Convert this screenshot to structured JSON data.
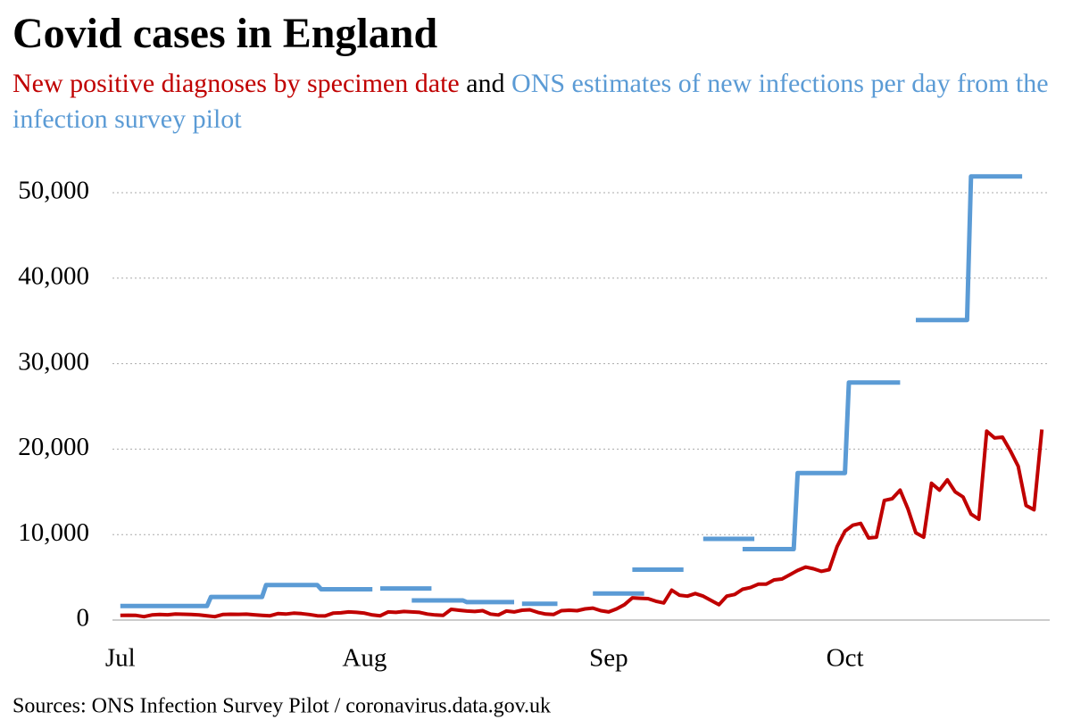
{
  "chart_data": {
    "type": "line",
    "title": "Covid cases in England",
    "subtitle_connector": "and",
    "source": "Sources: ONS Infection Survey Pilot / coronavirus.data.gov.uk",
    "xlim": [
      -1,
      118
    ],
    "xticks": [
      {
        "value": 0,
        "label": "Jul"
      },
      {
        "value": 31,
        "label": "Aug"
      },
      {
        "value": 62,
        "label": "Sep"
      },
      {
        "value": 92,
        "label": "Oct"
      }
    ],
    "ylim": [
      0,
      55000
    ],
    "yticks": [
      0,
      {
        "value": 10000,
        "label": "10,000"
      },
      {
        "value": 20000,
        "label": "20,000"
      },
      {
        "value": 30000,
        "label": "30,000"
      },
      {
        "value": 40000,
        "label": "40,000"
      },
      {
        "value": 50000,
        "label": "50,000"
      }
    ],
    "grid": true,
    "series": [
      {
        "name": "New positive diagnoses by specimen date",
        "color": "#c00000",
        "x": [
          0,
          1,
          2,
          3,
          4,
          5,
          6,
          7,
          8,
          9,
          10,
          11,
          12,
          13,
          14,
          15,
          16,
          17,
          18,
          19,
          20,
          21,
          22,
          23,
          24,
          25,
          26,
          27,
          28,
          29,
          30,
          31,
          32,
          33,
          34,
          35,
          36,
          37,
          38,
          39,
          40,
          41,
          42,
          43,
          44,
          45,
          46,
          47,
          48,
          49,
          50,
          51,
          52,
          53,
          54,
          55,
          56,
          57,
          58,
          59,
          60,
          61,
          62,
          63,
          64,
          65,
          66,
          67,
          68,
          69,
          70,
          71,
          72,
          73,
          74,
          75,
          76,
          77,
          78,
          79,
          80,
          81,
          82,
          83,
          84,
          85,
          86,
          87,
          88,
          89,
          90,
          91,
          92,
          93,
          94,
          95,
          96,
          97,
          98,
          99,
          100,
          101,
          102,
          103,
          104,
          105,
          106,
          107,
          108,
          109,
          110,
          111,
          112,
          113,
          114,
          115,
          116,
          117
        ],
        "values": [
          550,
          560,
          540,
          400,
          600,
          650,
          620,
          700,
          680,
          650,
          600,
          500,
          400,
          650,
          680,
          670,
          690,
          620,
          550,
          500,
          750,
          700,
          800,
          750,
          650,
          500,
          480,
          800,
          850,
          950,
          900,
          800,
          600,
          500,
          950,
          900,
          1000,
          950,
          900,
          700,
          600,
          550,
          1250,
          1150,
          1050,
          1000,
          1100,
          700,
          600,
          1050,
          950,
          1150,
          1200,
          900,
          700,
          650,
          1100,
          1150,
          1100,
          1300,
          1400,
          1100,
          950,
          1300,
          1800,
          2600,
          2550,
          2500,
          2200,
          2000,
          3500,
          2900,
          2800,
          3100,
          2800,
          2300,
          1800,
          2800,
          3000,
          3600,
          3800,
          4200,
          4200,
          4700,
          4800,
          5300,
          5800,
          6200,
          6000,
          5700,
          5900,
          8600,
          10400,
          11100,
          11300,
          9600,
          9700,
          14000,
          14200,
          15200,
          13000,
          10200,
          9700,
          16000,
          15200,
          16400,
          15000,
          14400,
          12400,
          11800,
          22100,
          21300,
          21400,
          19800,
          18000,
          13400,
          12900,
          22300
        ]
      },
      {
        "name": "ONS estimates of new infections per day from the infection survey pilot",
        "color": "#5b9bd5",
        "x": [
          0,
          11,
          11.5,
          18,
          18.5,
          25,
          25.5,
          32,
          32.5,
          33,
          39.5,
          40,
          37,
          43.5,
          44,
          50,
          50.5,
          51,
          55.5,
          56,
          60,
          66.5,
          67,
          65,
          71.5,
          72,
          74,
          80.5,
          81,
          79,
          85.5,
          86,
          92,
          92.5,
          99,
          100,
          101,
          107.5,
          108,
          114.5
        ],
        "values": [
          1650,
          1650,
          2700,
          2700,
          4100,
          4100,
          3600,
          3600,
          null,
          3700,
          3700,
          null,
          2300,
          2300,
          2100,
          2100,
          null,
          1900,
          1900,
          null,
          3100,
          3100,
          null,
          5900,
          5900,
          null,
          9500,
          9500,
          null,
          8300,
          8300,
          17200,
          17200,
          27800,
          27800,
          null,
          35100,
          35100,
          51900,
          51900
        ]
      }
    ]
  }
}
